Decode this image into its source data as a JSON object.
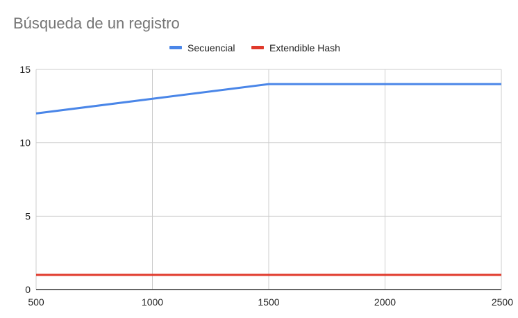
{
  "chart_data": {
    "type": "line",
    "title": "Búsqueda de un registro",
    "xlabel": "",
    "ylabel": "",
    "x": [
      500,
      1000,
      1500,
      2000,
      2500
    ],
    "xticks": [
      500,
      1000,
      1500,
      2000,
      2500
    ],
    "yticks": [
      0,
      5,
      10,
      15
    ],
    "xlim": [
      500,
      2500
    ],
    "ylim": [
      0,
      15
    ],
    "grid": true,
    "legend_position": "top",
    "series": [
      {
        "name": "Secuencial",
        "color": "#4a86e8",
        "values": [
          12,
          13,
          14,
          14,
          14
        ]
      },
      {
        "name": "Extendible Hash",
        "color": "#e0392b",
        "values": [
          1,
          1,
          1,
          1,
          1
        ]
      }
    ]
  }
}
